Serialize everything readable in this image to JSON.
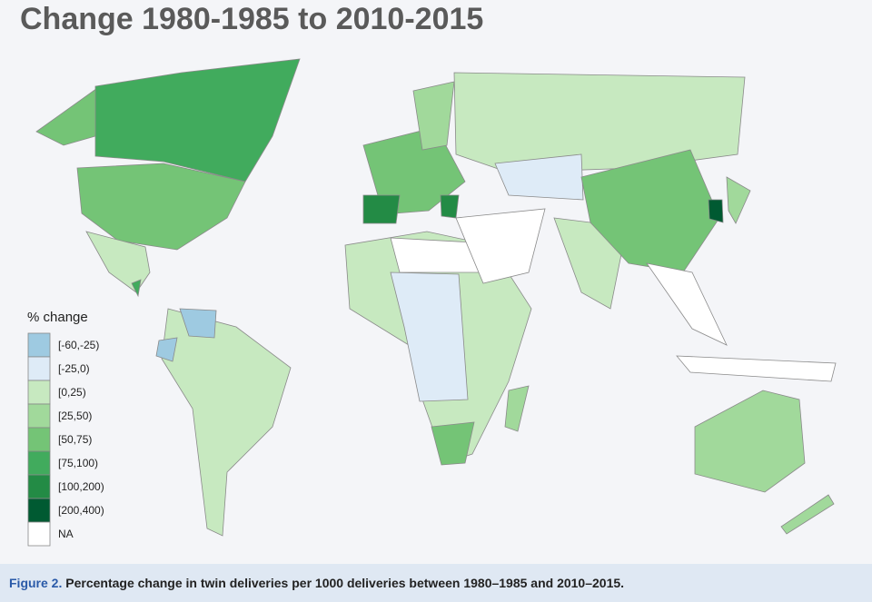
{
  "title": "Change 1980-1985 to 2010-2015",
  "legend": {
    "title": "% change",
    "items": [
      {
        "label": "[-60,-25)",
        "color": "#9ecae1"
      },
      {
        "label": "[-25,0)",
        "color": "#deebf7"
      },
      {
        "label": "[0,25)",
        "color": "#c7e9c0"
      },
      {
        "label": "[25,50)",
        "color": "#a1d99b"
      },
      {
        "label": "[50,75)",
        "color": "#74c476"
      },
      {
        "label": "[75,100)",
        "color": "#41ab5d"
      },
      {
        "label": "[100,200)",
        "color": "#238b45"
      },
      {
        "label": "[200,400)",
        "color": "#005a32"
      },
      {
        "label": "NA",
        "color": "#ffffff"
      }
    ]
  },
  "caption": {
    "label": "Figure 2.",
    "text": "Percentage change in twin deliveries per 1000 deliveries between 1980–1985 and 2010–2015."
  }
}
